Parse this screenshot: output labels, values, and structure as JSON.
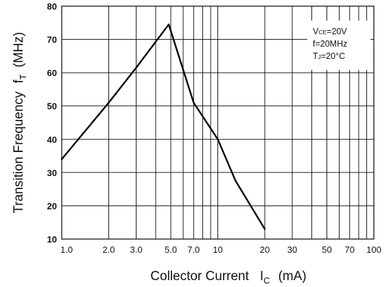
{
  "chart_data": {
    "type": "line",
    "title": "",
    "xlabel": "Collector Current",
    "xlabel_symbol": "I",
    "xlabel_subscript": "C",
    "xlabel_unit": "(mA)",
    "ylabel": "Transition Frequency",
    "ylabel_symbol": "f",
    "ylabel_subscript": "T",
    "ylabel_unit": "(MHz)",
    "x_scale": "log",
    "xlim": [
      1,
      100
    ],
    "ylim": [
      10,
      80
    ],
    "grid": true,
    "x_ticks": [
      {
        "value": 1,
        "label": "1.0"
      },
      {
        "value": 2,
        "label": "2.0"
      },
      {
        "value": 3,
        "label": "3.0"
      },
      {
        "value": 5,
        "label": "5.0"
      },
      {
        "value": 7,
        "label": "7.0"
      },
      {
        "value": 10,
        "label": "10"
      },
      {
        "value": 20,
        "label": "20"
      },
      {
        "value": 30,
        "label": "30"
      },
      {
        "value": 50,
        "label": "50"
      },
      {
        "value": 70,
        "label": "70"
      },
      {
        "value": 100,
        "label": "100"
      }
    ],
    "y_ticks": [
      {
        "value": 10,
        "label": "10"
      },
      {
        "value": 20,
        "label": "20"
      },
      {
        "value": 30,
        "label": "30"
      },
      {
        "value": 40,
        "label": "40"
      },
      {
        "value": 50,
        "label": "50"
      },
      {
        "value": 60,
        "label": "60"
      },
      {
        "value": 70,
        "label": "70"
      },
      {
        "value": 80,
        "label": "80"
      }
    ],
    "series": [
      {
        "x": [
          1.0,
          2.0,
          3.0,
          4.85,
          7.0,
          10.0,
          13.0,
          20.0
        ],
        "y": [
          34,
          51,
          61.5,
          74.5,
          51,
          40,
          27.5,
          13
        ]
      }
    ],
    "annotations": [
      "V",
      "CE",
      "=20V",
      "f=20MHz",
      "T",
      "J",
      "=20°C"
    ],
    "colors": {
      "line": "#000000",
      "grid": "#000000",
      "background": "#ffffff"
    }
  }
}
